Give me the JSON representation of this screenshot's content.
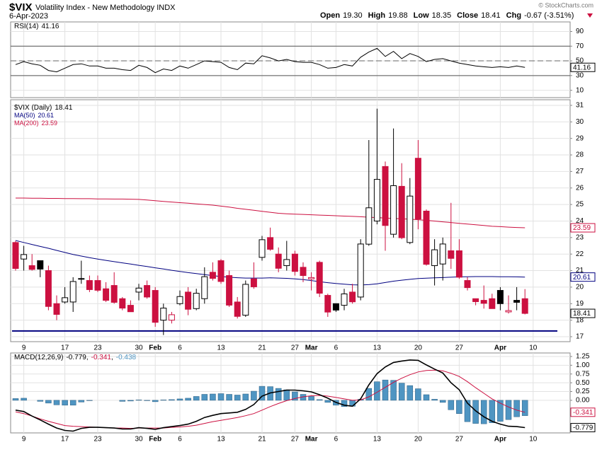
{
  "header": {
    "symbol": "$VIX",
    "name": "Volatility Index - New Methodology INDX",
    "date": "6-Apr-2023",
    "quote": [
      {
        "label": "Open",
        "value": "19.30"
      },
      {
        "label": "High",
        "value": "19.88"
      },
      {
        "label": "Low",
        "value": "18.35"
      },
      {
        "label": "Close",
        "value": "18.41"
      },
      {
        "label": "Chg",
        "value": "-0.67 (-3.51%)"
      }
    ],
    "credit": "© StockCharts.com"
  },
  "chart_data": [
    {
      "type": "line",
      "series": [
        {
          "name": "RSI(14)",
          "color": "#000000",
          "values": [
            45,
            49,
            46,
            44,
            37,
            35,
            40,
            45,
            46,
            43,
            43,
            40,
            40,
            38,
            37,
            44,
            41,
            34,
            39,
            37,
            43,
            40,
            45,
            50,
            49,
            48,
            41,
            38,
            47,
            46,
            57,
            54,
            50,
            52,
            49,
            48,
            48,
            45,
            40,
            41,
            45,
            43,
            55,
            62,
            67,
            56,
            63,
            53,
            60,
            56,
            49,
            52,
            53,
            50,
            47,
            45,
            43,
            42,
            41,
            42,
            41,
            43,
            41.16
          ]
        }
      ],
      "ylim": [
        0,
        103
      ],
      "yticks": [
        10,
        30,
        50,
        70,
        90
      ],
      "levels": [
        70,
        30
      ],
      "midline": 50,
      "grid": true
    },
    {
      "type": "candlestick",
      "categories": [
        null,
        "9",
        null,
        null,
        null,
        null,
        "17",
        null,
        null,
        null,
        "23",
        null,
        null,
        null,
        null,
        "30",
        null,
        "Feb",
        null,
        null,
        "6",
        null,
        null,
        null,
        null,
        "13",
        null,
        null,
        null,
        null,
        "21",
        null,
        null,
        null,
        "27",
        null,
        "Mar",
        null,
        null,
        "6",
        null,
        null,
        null,
        null,
        "13",
        null,
        null,
        null,
        null,
        "20",
        null,
        null,
        null,
        null,
        "27",
        null,
        null,
        null,
        null,
        "Apr",
        null,
        null,
        null,
        "10"
      ],
      "series": [
        {
          "name": "$VIX (Daily)",
          "up_color": "#000000",
          "down_color": "#cc1040",
          "open": [
            22.7,
            21.7,
            21.3,
            21.6,
            21.0,
            19.0,
            19.1,
            19.1,
            20.5,
            20.4,
            20.4,
            19.9,
            20.1,
            19.3,
            18.9,
            19.7,
            20.1,
            19.8,
            18.0,
            18.0,
            19.0,
            19.7,
            18.7,
            19.3,
            20.9,
            21.6,
            20.7,
            19.1,
            18.3,
            20.5,
            21.8,
            23.0,
            22.0,
            21.3,
            22.0,
            21.2,
            20.5,
            21.5,
            19.5,
            19.0,
            18.9,
            19.7,
            19.4,
            22.6,
            24.0,
            27.3,
            23.2,
            26.1,
            22.7,
            27.8,
            24.6,
            21.3,
            21.4,
            22.2,
            22.2,
            20.4,
            19.3,
            19.2,
            19.3,
            19.8,
            18.5,
            19.2,
            19.3,
            null
          ],
          "high": [
            22.8,
            22.5,
            22.0,
            21.6,
            21.3,
            19.5,
            20.0,
            20.6,
            21.6,
            20.7,
            20.7,
            20.3,
            20.9,
            19.4,
            19.2,
            20.2,
            20.4,
            20.0,
            19.0,
            18.5,
            19.8,
            20.0,
            19.9,
            21.2,
            21.5,
            21.7,
            21.0,
            19.4,
            20.4,
            21.5,
            23.1,
            23.6,
            22.4,
            22.8,
            22.2,
            21.5,
            20.9,
            21.6,
            19.6,
            19.0,
            19.9,
            20.2,
            22.9,
            28.9,
            30.8,
            27.6,
            29.6,
            27.5,
            26.6,
            28.9,
            24.7,
            22.9,
            23.0,
            25.1,
            22.9,
            20.6,
            19.3,
            20.1,
            19.6,
            20.0,
            19.5,
            20.0,
            19.88,
            null
          ],
          "low": [
            21.0,
            21.0,
            21.0,
            20.6,
            18.6,
            18.0,
            19.0,
            18.5,
            20.2,
            19.7,
            19.7,
            19.1,
            19.0,
            18.6,
            18.5,
            19.2,
            19.3,
            17.6,
            17.1,
            17.8,
            18.9,
            18.3,
            18.6,
            19.0,
            20.4,
            20.2,
            18.8,
            18.1,
            18.2,
            19.9,
            21.6,
            22.2,
            20.9,
            21.0,
            20.7,
            20.3,
            19.8,
            19.4,
            18.2,
            18.5,
            18.6,
            19.0,
            19.2,
            22.5,
            23.8,
            22.2,
            23.0,
            22.9,
            22.6,
            23.5,
            21.3,
            20.1,
            20.4,
            21.1,
            20.5,
            19.8,
            18.9,
            18.7,
            18.7,
            18.6,
            18.4,
            18.6,
            18.35,
            null
          ],
          "close": [
            21.13,
            21.97,
            21.07,
            21.09,
            18.83,
            18.35,
            19.36,
            20.34,
            20.52,
            19.85,
            19.81,
            19.2,
            19.08,
            18.73,
            18.51,
            19.94,
            19.4,
            17.87,
            18.73,
            18.33,
            19.43,
            18.66,
            19.63,
            20.63,
            20.53,
            20.34,
            18.91,
            18.23,
            20.17,
            20.02,
            22.87,
            22.29,
            21.14,
            21.67,
            20.95,
            20.7,
            20.58,
            19.63,
            18.49,
            18.61,
            19.59,
            19.11,
            22.61,
            24.8,
            26.52,
            23.73,
            26.14,
            22.99,
            25.51,
            24.12,
            21.38,
            22.26,
            22.61,
            21.74,
            20.6,
            19.97,
            19.12,
            19.02,
            18.7,
            19.0,
            18.58,
            19.08,
            18.41,
            null
          ]
        },
        {
          "name": "MA(50)",
          "color": "#000080",
          "values": [
            22.82,
            22.7,
            22.58,
            22.46,
            22.35,
            22.22,
            22.1,
            21.98,
            21.88,
            21.78,
            21.7,
            21.62,
            21.54,
            21.47,
            21.4,
            21.32,
            21.25,
            21.17,
            21.1,
            21.02,
            20.95,
            20.88,
            20.82,
            20.76,
            20.7,
            20.64,
            20.6,
            20.57,
            20.55,
            20.55,
            20.55,
            20.56,
            20.55,
            20.53,
            20.5,
            20.46,
            20.4,
            20.33,
            20.27,
            20.22,
            20.18,
            20.14,
            20.13,
            20.15,
            20.2,
            20.28,
            20.36,
            20.42,
            20.47,
            20.52,
            20.54,
            20.56,
            20.58,
            20.6,
            20.62,
            20.63,
            20.64,
            20.64,
            20.64,
            20.63,
            20.63,
            20.62,
            20.61,
            null
          ]
        },
        {
          "name": "MA(200)",
          "color": "#cc1040",
          "values": [
            25.39,
            25.39,
            25.38,
            25.38,
            25.37,
            25.37,
            25.36,
            25.36,
            25.35,
            25.35,
            25.34,
            25.34,
            25.33,
            25.33,
            25.32,
            25.31,
            25.27,
            25.23,
            25.19,
            25.15,
            25.11,
            25.08,
            25.04,
            25.0,
            24.96,
            24.9,
            24.84,
            24.77,
            24.71,
            24.65,
            24.59,
            24.53,
            24.47,
            24.44,
            24.42,
            24.4,
            24.38,
            24.36,
            24.34,
            24.32,
            24.3,
            24.28,
            24.26,
            24.23,
            24.21,
            24.18,
            24.16,
            24.13,
            24.11,
            24.08,
            24.04,
            24.0,
            23.95,
            23.91,
            23.86,
            23.82,
            23.77,
            23.73,
            23.68,
            23.66,
            23.63,
            23.61,
            23.59,
            null
          ]
        }
      ],
      "ylim": [
        16.7,
        31.34
      ],
      "yticks": [
        17,
        18,
        19,
        20,
        21,
        22,
        23,
        24,
        25,
        26,
        27,
        28,
        29,
        30,
        31
      ],
      "hline": {
        "value": 17.35,
        "color": "#000080"
      },
      "grid": true
    },
    {
      "type": "combo",
      "categories": [
        null,
        "9",
        null,
        null,
        null,
        null,
        "17",
        null,
        null,
        null,
        "23",
        null,
        null,
        null,
        null,
        "30",
        null,
        "Feb",
        null,
        null,
        "6",
        null,
        null,
        null,
        null,
        "13",
        null,
        null,
        null,
        null,
        "21",
        null,
        null,
        null,
        "27",
        null,
        "Mar",
        null,
        null,
        "6",
        null,
        null,
        null,
        null,
        "13",
        null,
        null,
        null,
        null,
        "20",
        null,
        null,
        null,
        null,
        "27",
        null,
        null,
        null,
        null,
        "Apr",
        null,
        null,
        null,
        "10"
      ],
      "macd": {
        "name": "MACD(12,26,9)",
        "color": "#000000",
        "values": [
          -0.28,
          -0.32,
          -0.45,
          -0.56,
          -0.68,
          -0.79,
          -0.86,
          -0.88,
          -0.8,
          -0.77,
          -0.77,
          -0.78,
          -0.79,
          -0.82,
          -0.82,
          -0.78,
          -0.8,
          -0.83,
          -0.78,
          -0.75,
          -0.72,
          -0.68,
          -0.6,
          -0.49,
          -0.43,
          -0.38,
          -0.36,
          -0.34,
          -0.26,
          -0.12,
          0.12,
          0.21,
          0.25,
          0.29,
          0.29,
          0.27,
          0.24,
          0.16,
          0.06,
          -0.06,
          -0.14,
          -0.17,
          0.04,
          0.44,
          0.76,
          0.95,
          1.08,
          1.12,
          1.15,
          1.14,
          1.01,
          0.89,
          0.78,
          0.5,
          0.3,
          -0.08,
          -0.3,
          -0.47,
          -0.6,
          -0.68,
          -0.74,
          -0.75,
          -0.779,
          null
        ]
      },
      "signal": {
        "color": "#cc1040",
        "values": [
          -0.33,
          -0.38,
          -0.45,
          -0.53,
          -0.6,
          -0.66,
          -0.72,
          -0.74,
          -0.75,
          -0.76,
          -0.77,
          -0.78,
          -0.79,
          -0.79,
          -0.8,
          -0.79,
          -0.79,
          -0.79,
          -0.79,
          -0.77,
          -0.76,
          -0.74,
          -0.71,
          -0.66,
          -0.61,
          -0.57,
          -0.53,
          -0.49,
          -0.44,
          -0.38,
          -0.28,
          -0.18,
          -0.09,
          -0.01,
          0.05,
          0.1,
          0.13,
          0.14,
          0.12,
          0.08,
          0.04,
          0,
          0.01,
          0.1,
          0.23,
          0.37,
          0.51,
          0.63,
          0.73,
          0.81,
          0.85,
          0.86,
          0.84,
          0.77,
          0.68,
          0.53,
          0.36,
          0.2,
          0.04,
          -0.08,
          -0.19,
          -0.28,
          -0.341,
          null
        ]
      },
      "histogram": {
        "color": "#4f95c2",
        "values": [
          0.05,
          0.06,
          0,
          -0.03,
          -0.08,
          -0.13,
          -0.14,
          -0.14,
          -0.05,
          -0.01,
          0,
          0,
          0,
          -0.03,
          -0.02,
          0.01,
          -0.01,
          -0.04,
          0.01,
          0.02,
          0.04,
          0.06,
          0.11,
          0.17,
          0.18,
          0.19,
          0.17,
          0.15,
          0.18,
          0.26,
          0.4,
          0.39,
          0.34,
          0.3,
          0.24,
          0.17,
          0.11,
          0.02,
          -0.06,
          -0.14,
          -0.18,
          -0.17,
          0.03,
          0.34,
          0.53,
          0.58,
          0.57,
          0.49,
          0.42,
          0.33,
          0.16,
          0.03,
          -0.06,
          -0.27,
          -0.38,
          -0.61,
          -0.66,
          -0.67,
          -0.64,
          -0.6,
          -0.55,
          -0.47,
          -0.438,
          null
        ]
      },
      "ylim": [
        -0.93,
        1.35
      ],
      "yticks": [
        {
          "value": 1.25,
          "label": "1.25"
        },
        {
          "value": 1,
          "label": "1.00"
        },
        {
          "value": 0.75,
          "label": "0.75"
        },
        {
          "value": 0.5,
          "label": "0.50"
        },
        {
          "value": 0.25,
          "label": "0.25"
        },
        {
          "value": 0,
          "label": "0.00"
        }
      ],
      "grid": true
    }
  ]
}
